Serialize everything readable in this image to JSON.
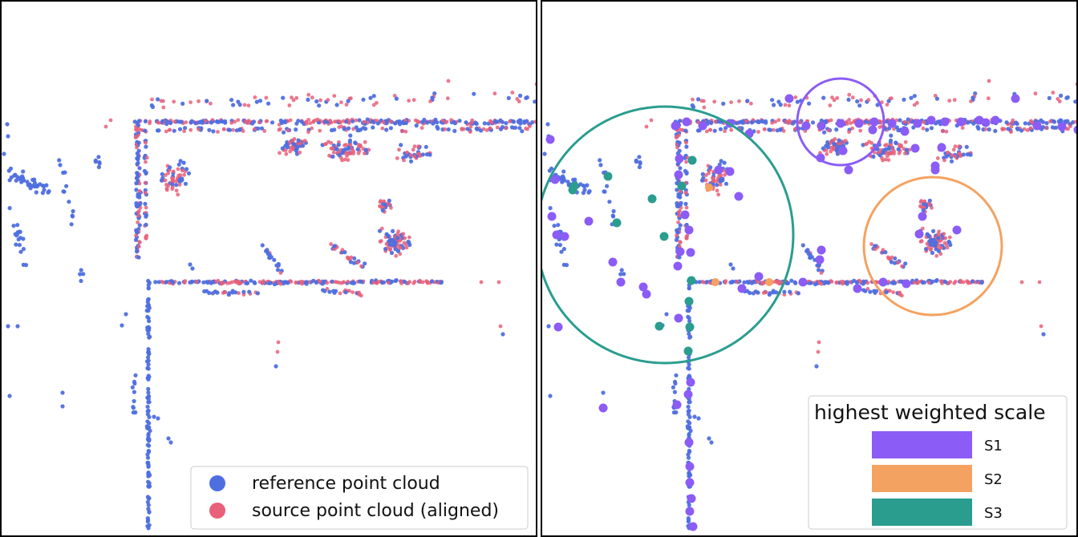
{
  "colors": {
    "reference": "#4f6fe0",
    "source": "#e8607a",
    "s1": "#8b5cf6",
    "s2": "#f4a261",
    "s3": "#2a9d8f"
  },
  "left_panel": {
    "legend": {
      "items": [
        {
          "label": "reference point cloud",
          "color_key": "reference"
        },
        {
          "label": "source point cloud (aligned)",
          "color_key": "source"
        }
      ]
    }
  },
  "right_panel": {
    "legend": {
      "title": "highest weighted scale",
      "items": [
        {
          "label": "S1",
          "color_key": "s1"
        },
        {
          "label": "S2",
          "color_key": "s2"
        },
        {
          "label": "S3",
          "color_key": "s3"
        }
      ]
    }
  },
  "chart_data": [
    {
      "type": "scatter",
      "series": [
        {
          "name": "reference point cloud"
        },
        {
          "name": "source point cloud (aligned)"
        }
      ]
    },
    {
      "type": "scatter",
      "legend_title": "highest weighted scale",
      "series": [
        {
          "name": "S1"
        },
        {
          "name": "S2"
        },
        {
          "name": "S3"
        }
      ]
    }
  ]
}
